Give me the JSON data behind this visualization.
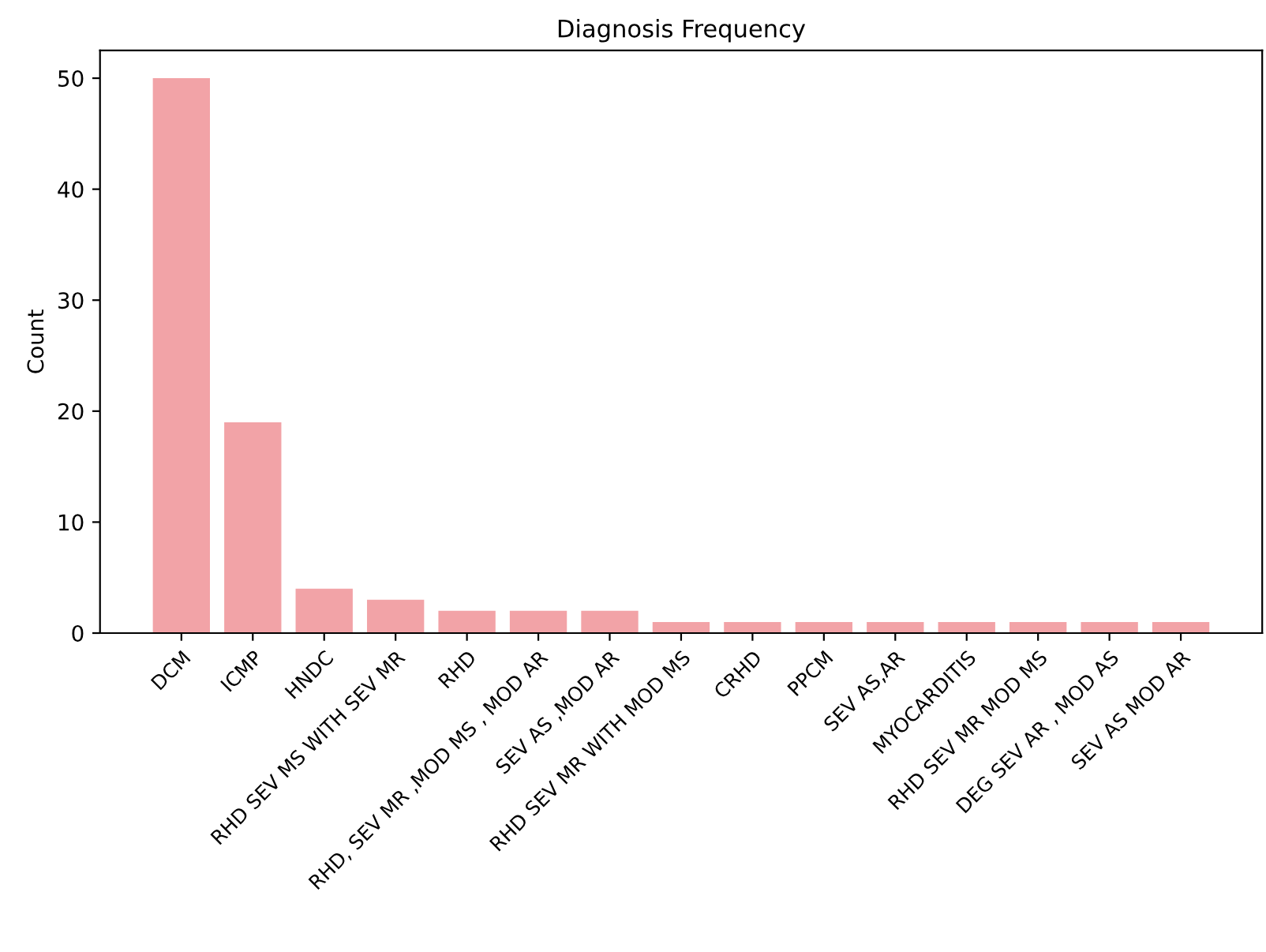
{
  "chart_data": {
    "type": "bar",
    "title": "Diagnosis Frequency",
    "ylabel": "Count",
    "categories": [
      "DCM",
      "ICMP",
      "HNDC",
      "RHD SEV MS WITH SEV MR",
      "RHD",
      "RHD, SEV MR ,MOD MS , MOD AR",
      "SEV AS ,MOD AR",
      "RHD SEV MR WITH MOD MS",
      "CRHD",
      "PPCM",
      "SEV AS,AR",
      "MYOCARDITIS",
      "RHD SEV MR MOD MS",
      "DEG SEV AR , MOD AS",
      "SEV AS MOD AR"
    ],
    "values": [
      50,
      19,
      4,
      3,
      2,
      2,
      2,
      1,
      1,
      1,
      1,
      1,
      1,
      1,
      1
    ],
    "color": "#f2a3a7",
    "ylim": [
      0,
      52.5
    ],
    "yticks": [
      0,
      10,
      20,
      30,
      40,
      50
    ],
    "grid": false,
    "legend": false
  }
}
